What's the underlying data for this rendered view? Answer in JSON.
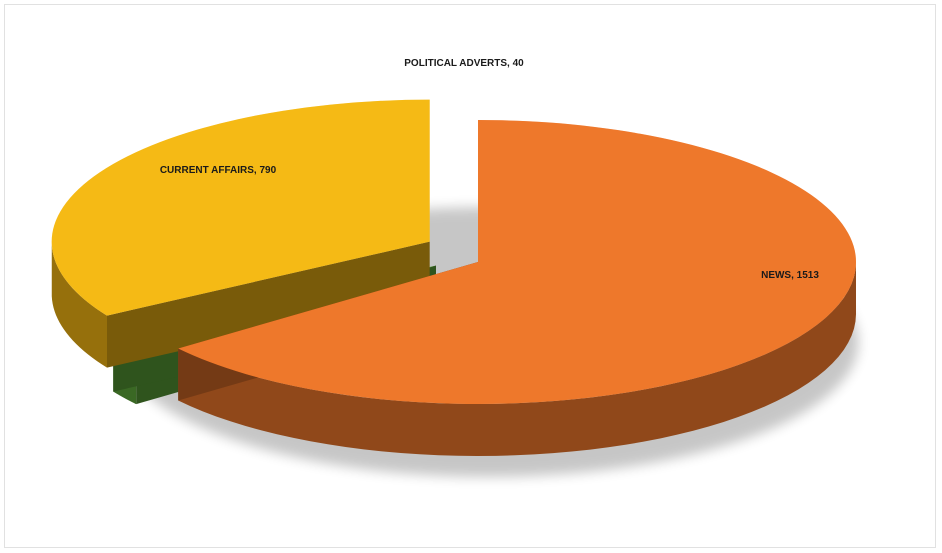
{
  "chart_data": {
    "type": "pie",
    "title": "",
    "slices": [
      {
        "label": "NEWS",
        "value": 1513,
        "color": "#e8742a"
      },
      {
        "label": "POLITICAL ADVERTS",
        "value": 40,
        "color": "#5ea83a"
      },
      {
        "label": "CURRENT AFFAIRS",
        "value": 790,
        "color": "#f2b514"
      }
    ],
    "label_format": "{label}, {value}",
    "style": "3d-exploded",
    "legend": "none"
  }
}
